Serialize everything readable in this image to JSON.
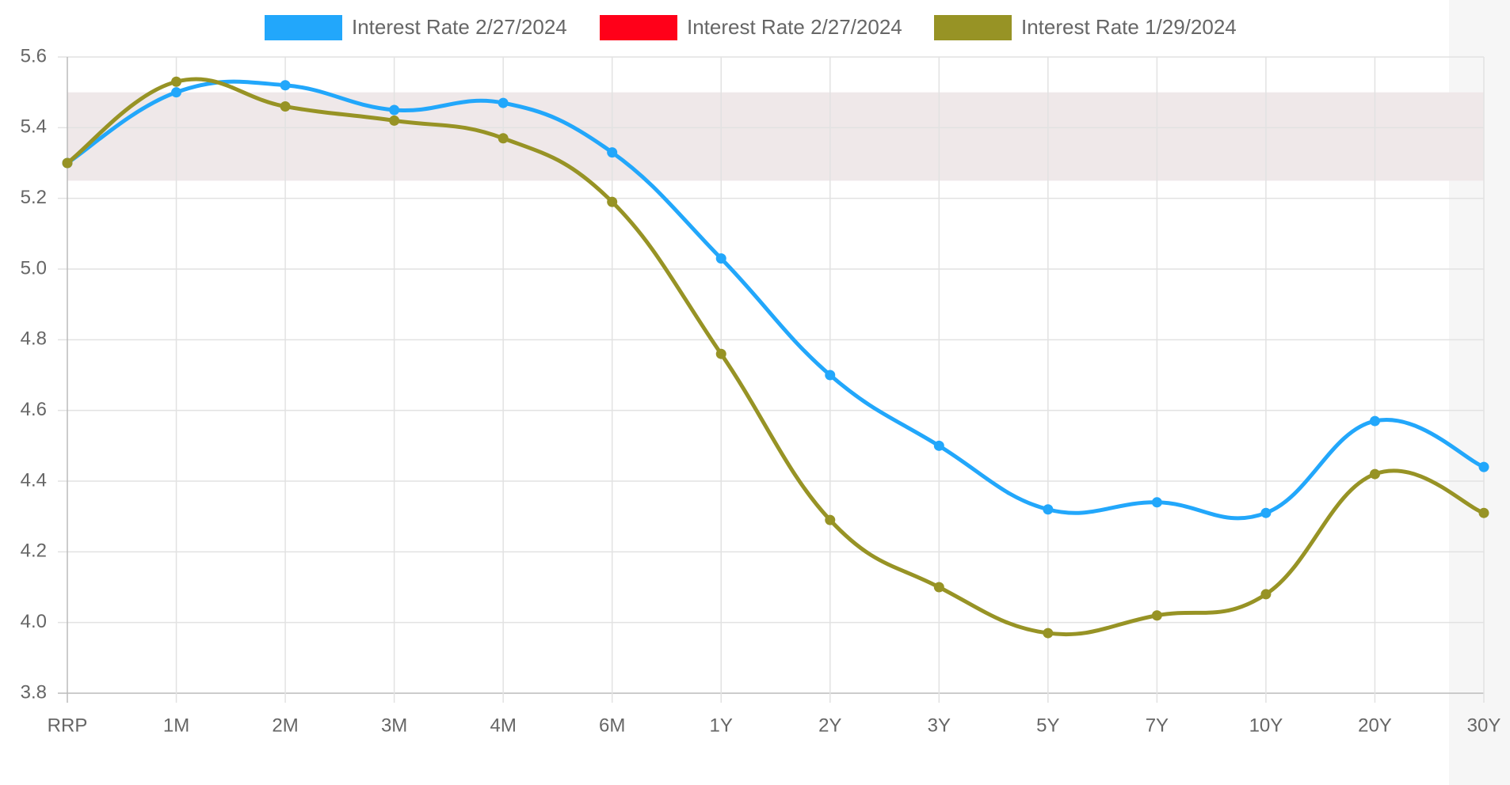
{
  "chart_data": {
    "type": "line",
    "categories": [
      "RRP",
      "1M",
      "2M",
      "3M",
      "4M",
      "6M",
      "1Y",
      "2Y",
      "3Y",
      "5Y",
      "7Y",
      "10Y",
      "20Y",
      "30Y"
    ],
    "series": [
      {
        "name": "Interest Rate 2/27/2024",
        "color": "#22a7fb",
        "values": [
          5.3,
          5.5,
          5.52,
          5.45,
          5.47,
          5.33,
          5.03,
          4.7,
          4.5,
          4.32,
          4.34,
          4.31,
          4.57,
          4.44
        ]
      },
      {
        "name": "Interest Rate 2/27/2024",
        "color": "#ff0019",
        "values": [
          null,
          null,
          null,
          null,
          null,
          null,
          null,
          null,
          null,
          null,
          null,
          null,
          null,
          null
        ]
      },
      {
        "name": "Interest Rate 1/29/2024",
        "color": "#979325",
        "values": [
          5.3,
          5.53,
          5.46,
          5.42,
          5.37,
          5.19,
          4.76,
          4.29,
          4.1,
          3.97,
          4.02,
          4.08,
          4.42,
          4.31
        ]
      }
    ],
    "band": {
      "ylim": [
        5.25,
        5.5
      ],
      "color": "#efe8e9"
    },
    "ylim": [
      3.8,
      5.6
    ],
    "yticks": [
      3.8,
      {
        "value": 4,
        "label": "4.0"
      },
      4.2,
      4.4,
      4.6,
      4.8,
      {
        "value": 5,
        "label": "5.0"
      },
      5.2,
      5.4,
      5.6
    ],
    "grid": true
  }
}
